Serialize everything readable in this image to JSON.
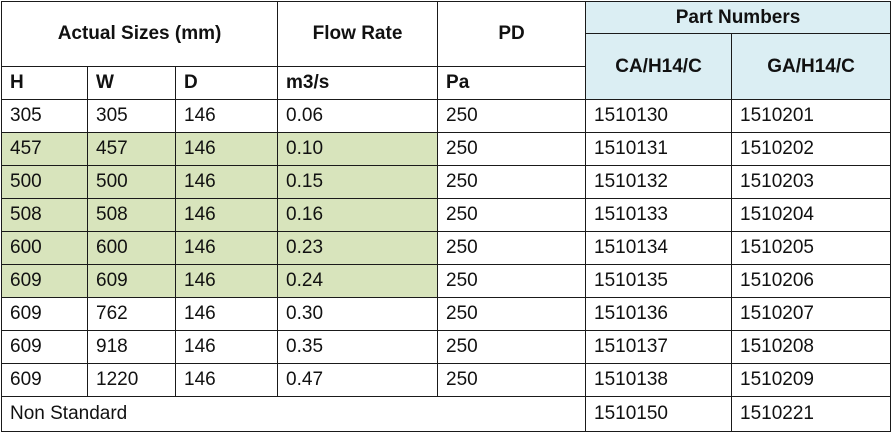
{
  "header": {
    "actual_sizes": "Actual Sizes (mm)",
    "flow_rate": "Flow Rate",
    "pd": "PD",
    "part_numbers": "Part Numbers",
    "ca": "CA/H14/C",
    "ga": "GA/H14/C"
  },
  "units": {
    "h": "H",
    "w": "W",
    "d": "D",
    "flow": "m3/s",
    "pd": "Pa"
  },
  "highlight_color": "#d8e4bc",
  "part_header_color": "#dbeef3",
  "rows": [
    {
      "h": "305",
      "w": "305",
      "d": "146",
      "flow": "0.06",
      "pd": "250",
      "ca": "1510130",
      "ga": "1510201",
      "highlight": false
    },
    {
      "h": "457",
      "w": "457",
      "d": "146",
      "flow": "0.10",
      "pd": "250",
      "ca": "1510131",
      "ga": "1510202",
      "highlight": true
    },
    {
      "h": "500",
      "w": "500",
      "d": "146",
      "flow": "0.15",
      "pd": "250",
      "ca": "1510132",
      "ga": "1510203",
      "highlight": true
    },
    {
      "h": "508",
      "w": "508",
      "d": "146",
      "flow": "0.16",
      "pd": "250",
      "ca": "1510133",
      "ga": "1510204",
      "highlight": true
    },
    {
      "h": "600",
      "w": "600",
      "d": "146",
      "flow": "0.23",
      "pd": "250",
      "ca": "1510134",
      "ga": "1510205",
      "highlight": true
    },
    {
      "h": "609",
      "w": "609",
      "d": "146",
      "flow": "0.24",
      "pd": "250",
      "ca": "1510135",
      "ga": "1510206",
      "highlight": true
    },
    {
      "h": "609",
      "w": "762",
      "d": "146",
      "flow": "0.30",
      "pd": "250",
      "ca": "1510136",
      "ga": "1510207",
      "highlight": false
    },
    {
      "h": "609",
      "w": "918",
      "d": "146",
      "flow": "0.35",
      "pd": "250",
      "ca": "1510137",
      "ga": "1510208",
      "highlight": false
    },
    {
      "h": "609",
      "w": "1220",
      "d": "146",
      "flow": "0.47",
      "pd": "250",
      "ca": "1510138",
      "ga": "1510209",
      "highlight": false
    }
  ],
  "non_standard": {
    "label": "Non Standard",
    "ca": "1510150",
    "ga": "1510221"
  }
}
